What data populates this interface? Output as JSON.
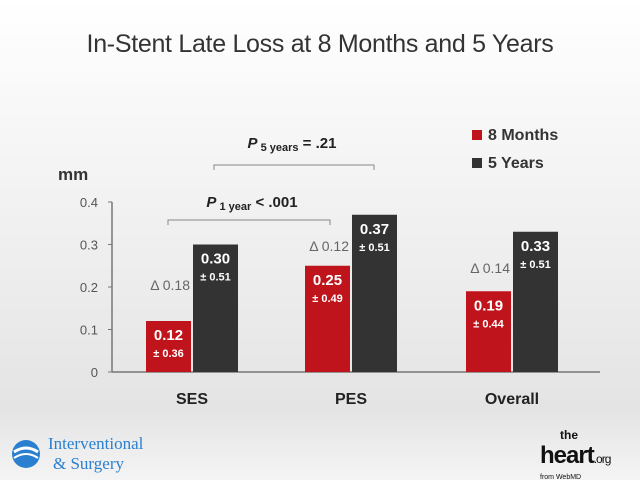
{
  "chart_data": {
    "type": "bar",
    "title": "In-Stent Late Loss at 8 Months and 5 Years",
    "ylabel": "mm",
    "ylim": [
      0,
      0.4
    ],
    "yticks": [
      "0",
      "0.1",
      "0.2",
      "0.3",
      "0.4"
    ],
    "categories": [
      "SES",
      "PES",
      "Overall"
    ],
    "series": [
      {
        "name": "8 Months",
        "color": "#c0141c",
        "values": [
          0.12,
          0.25,
          0.19
        ],
        "labels": [
          "0.12",
          "0.25",
          "0.19"
        ],
        "sd": [
          "± 0.36",
          "± 0.49",
          "± 0.44"
        ]
      },
      {
        "name": "5 Years",
        "color": "#333333",
        "values": [
          0.3,
          0.37,
          0.33
        ],
        "labels": [
          "0.30",
          "0.37",
          "0.33"
        ],
        "sd": [
          "± 0.51",
          "± 0.51",
          "± 0.51"
        ]
      }
    ],
    "deltas": [
      "Δ 0.18",
      "Δ 0.12",
      "Δ 0.14"
    ],
    "annotations": [
      {
        "p": "P",
        "sub": "1 year",
        "rest": "< .001"
      },
      {
        "p": "P",
        "sub": "5 years",
        "rest": "= .21"
      }
    ],
    "legend": "top-right"
  },
  "logos": {
    "left": [
      "Interventional",
      "& Surgery"
    ],
    "right": "theheart.org from WebMD"
  }
}
